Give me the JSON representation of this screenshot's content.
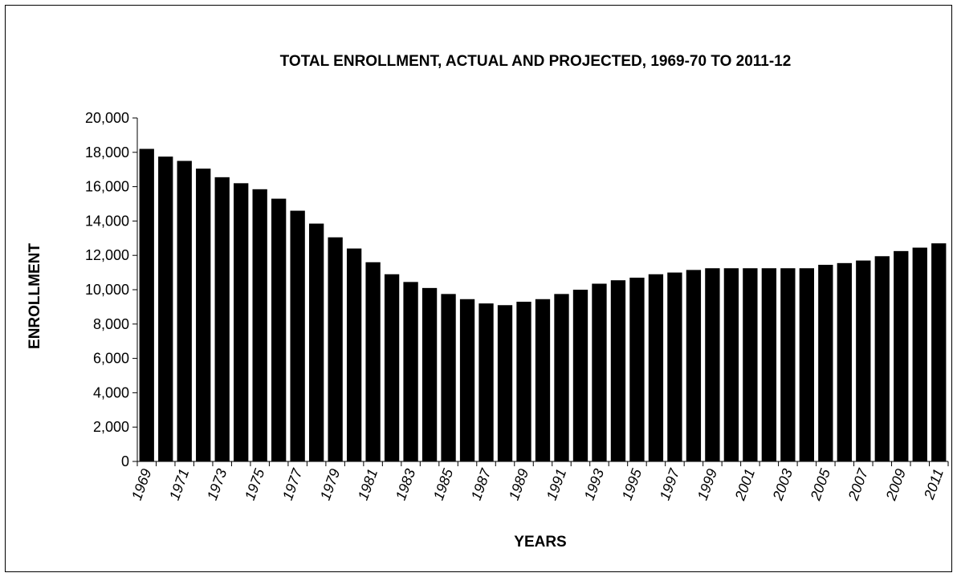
{
  "chart_data": {
    "type": "bar",
    "title": "TOTAL ENROLLMENT, ACTUAL AND PROJECTED, 1969-70 TO 2011-12",
    "xlabel": "YEARS",
    "ylabel": "ENROLLMENT",
    "ylim": [
      0,
      20000
    ],
    "yticks": [
      0,
      2000,
      4000,
      6000,
      8000,
      10000,
      12000,
      14000,
      16000,
      18000,
      20000
    ],
    "ytick_labels": [
      "0",
      "2,000",
      "4,000",
      "6,000",
      "8,000",
      "10,000",
      "12,000",
      "14,000",
      "16,000",
      "18,000",
      "20,000"
    ],
    "grid": false,
    "legend": "none",
    "bar_color": "#000000",
    "categories": [
      "1969",
      "1970",
      "1971",
      "1972",
      "1973",
      "1974",
      "1975",
      "1976",
      "1977",
      "1978",
      "1979",
      "1980",
      "1981",
      "1982",
      "1983",
      "1984",
      "1985",
      "1986",
      "1987",
      "1988",
      "1989",
      "1990",
      "1991",
      "1992",
      "1993",
      "1994",
      "1995",
      "1996",
      "1997",
      "1998",
      "1999",
      "2000",
      "2001",
      "2002",
      "2003",
      "2004",
      "2005",
      "2006",
      "2007",
      "2008",
      "2009",
      "2010",
      "2011"
    ],
    "tick_label_categories": [
      "1969",
      "1971",
      "1973",
      "1975",
      "1977",
      "1979",
      "1981",
      "1983",
      "1985",
      "1987",
      "1989",
      "1991",
      "1993",
      "1995",
      "1997",
      "1999",
      "2001",
      "2003",
      "2005",
      "2007",
      "2009",
      "2011"
    ],
    "values": [
      18200,
      17750,
      17500,
      17050,
      16550,
      16200,
      15850,
      15300,
      14600,
      13850,
      13050,
      12400,
      11600,
      10900,
      10450,
      10100,
      9750,
      9450,
      9200,
      9100,
      9300,
      9450,
      9750,
      10000,
      10350,
      10550,
      10700,
      10900,
      11000,
      11150,
      11250,
      11250,
      11250,
      11250,
      11250,
      11250,
      11450,
      11550,
      11700,
      11950,
      12250,
      12450,
      12700
    ]
  }
}
